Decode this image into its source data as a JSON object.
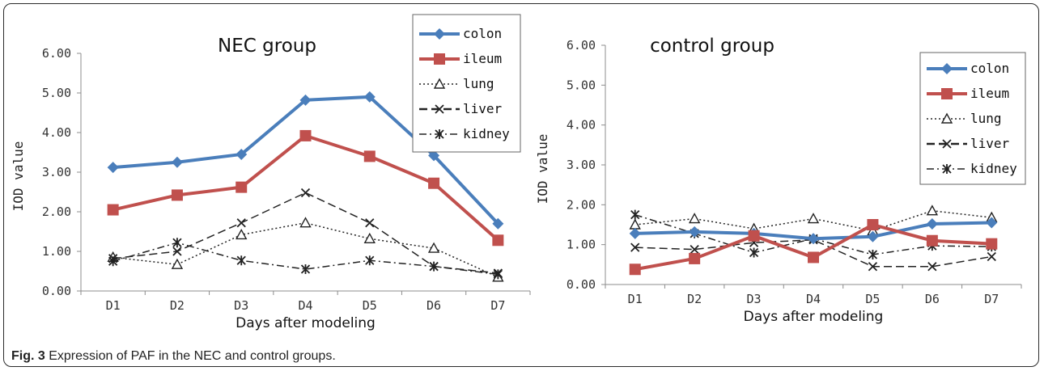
{
  "figure": {
    "caption_label": "Fig. 3",
    "caption_text": " Expression of PAF in the NEC and control groups."
  },
  "chart_data": [
    {
      "type": "line",
      "title": "NEC group",
      "xlabel": "Days after modeling",
      "ylabel": "IOD value",
      "categories": [
        "D1",
        "D2",
        "D3",
        "D4",
        "D5",
        "D6",
        "D7"
      ],
      "ylim": [
        0,
        6
      ],
      "yticks": [
        "0.00",
        "1.00",
        "2.00",
        "3.00",
        "4.00",
        "5.00",
        "6.00"
      ],
      "grid": false,
      "legend_position": "top-right",
      "series": [
        {
          "name": "colon",
          "values": [
            3.12,
            3.25,
            3.45,
            4.82,
            4.9,
            3.42,
            1.7
          ],
          "color": "#4a7ebb",
          "style": "solid",
          "marker": "diamond"
        },
        {
          "name": "ileum",
          "values": [
            2.05,
            2.42,
            2.62,
            3.92,
            3.4,
            2.72,
            1.28
          ],
          "color": "#c0504d",
          "style": "solid",
          "marker": "square"
        },
        {
          "name": "lung",
          "values": [
            0.85,
            0.67,
            1.42,
            1.72,
            1.32,
            1.08,
            0.35
          ],
          "color": "#222222",
          "style": "dotted",
          "marker": "triangle"
        },
        {
          "name": "liver",
          "values": [
            0.82,
            1.0,
            1.72,
            2.48,
            1.72,
            0.62,
            0.45
          ],
          "color": "#222222",
          "style": "dashed",
          "marker": "x"
        },
        {
          "name": "kidney",
          "values": [
            0.75,
            1.22,
            0.77,
            0.55,
            0.77,
            0.62,
            0.42
          ],
          "color": "#222222",
          "style": "dashdot",
          "marker": "star"
        }
      ]
    },
    {
      "type": "line",
      "title": "control group",
      "xlabel": "Days after modeling",
      "ylabel": "IOD value",
      "categories": [
        "D1",
        "D2",
        "D3",
        "D4",
        "D5",
        "D6",
        "D7"
      ],
      "ylim": [
        0,
        6
      ],
      "yticks": [
        "0.00",
        "1.00",
        "2.00",
        "3.00",
        "4.00",
        "5.00",
        "6.00"
      ],
      "grid": false,
      "legend_position": "top-right",
      "series": [
        {
          "name": "colon",
          "values": [
            1.28,
            1.32,
            1.28,
            1.15,
            1.2,
            1.52,
            1.55
          ],
          "color": "#4a7ebb",
          "style": "solid",
          "marker": "diamond"
        },
        {
          "name": "ileum",
          "values": [
            0.38,
            0.65,
            1.22,
            0.68,
            1.5,
            1.1,
            1.02
          ],
          "color": "#c0504d",
          "style": "solid",
          "marker": "square"
        },
        {
          "name": "lung",
          "values": [
            1.5,
            1.65,
            1.4,
            1.65,
            1.35,
            1.85,
            1.68
          ],
          "color": "#222222",
          "style": "dotted",
          "marker": "triangle"
        },
        {
          "name": "liver",
          "values": [
            0.93,
            0.88,
            1.05,
            1.12,
            0.45,
            0.45,
            0.7
          ],
          "color": "#222222",
          "style": "dashed",
          "marker": "x"
        },
        {
          "name": "kidney",
          "values": [
            1.75,
            1.28,
            0.8,
            1.15,
            0.75,
            0.97,
            0.95
          ],
          "color": "#222222",
          "style": "dashdot",
          "marker": "star"
        }
      ]
    }
  ]
}
